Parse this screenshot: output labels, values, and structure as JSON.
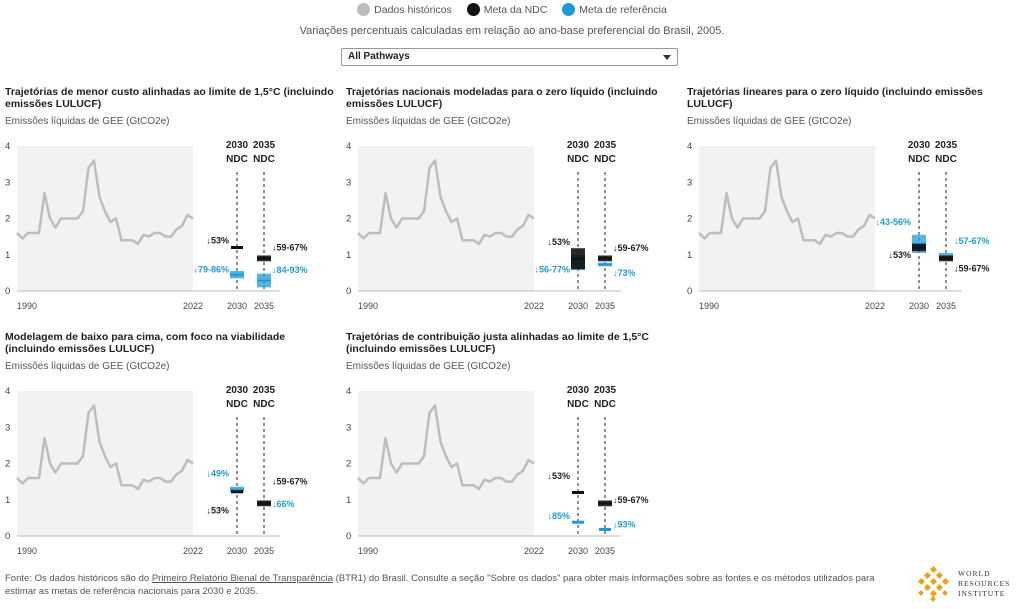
{
  "legend": [
    {
      "label": "Dados históricos",
      "color": "#bdbdbd"
    },
    {
      "label": "Meta da NDC",
      "color": "#111111"
    },
    {
      "label": "Meta de referência",
      "color": "#1e9bd7"
    }
  ],
  "subtitle": "Variações percentuais calculadas em relação ao ano-base preferencial do Brasil, 2005.",
  "dropdown": {
    "selected": "All Pathways"
  },
  "shared": {
    "ylabel": "Emissões líquidas de GEE (GtCO2e)",
    "ylim": [
      0,
      4
    ],
    "yticks": [
      "0",
      "1",
      "2",
      "3",
      "4"
    ],
    "x_labels": [
      "1990",
      "2022",
      "2030",
      "2035"
    ],
    "ndc_headers": [
      [
        "2030",
        "NDC"
      ],
      [
        "2035",
        "NDC"
      ]
    ],
    "history_x": [
      1990,
      1991,
      1992,
      1993,
      1994,
      1995,
      1996,
      1997,
      1998,
      1999,
      2000,
      2001,
      2002,
      2003,
      2004,
      2005,
      2006,
      2007,
      2008,
      2009,
      2010,
      2011,
      2012,
      2013,
      2014,
      2015,
      2016,
      2017,
      2018,
      2019,
      2020,
      2021,
      2022
    ],
    "history_y": [
      1.6,
      1.45,
      1.6,
      1.6,
      1.6,
      2.7,
      2.0,
      1.75,
      2.0,
      2.0,
      2.0,
      2.0,
      2.2,
      3.4,
      3.6,
      2.6,
      2.2,
      1.9,
      2.0,
      1.4,
      1.4,
      1.4,
      1.3,
      1.55,
      1.5,
      1.6,
      1.6,
      1.5,
      1.5,
      1.7,
      1.8,
      2.1,
      2.0
    ]
  },
  "chart_data": [
    {
      "type": "line",
      "title": "Trajetórias de menor custo alinhadas ao limite de 1,5°C (incluindo emissões LULUCF)",
      "ndc": {
        "2030": 1.2,
        "2035": [
          0.82,
          0.98
        ]
      },
      "ref": {
        "2030": [
          0.35,
          0.55
        ],
        "2035": [
          0.1,
          0.48
        ]
      },
      "labels": [
        {
          "text": "↓53%",
          "kind": "ndc",
          "x": 2030,
          "y": 1.4,
          "side": "left"
        },
        {
          "text": "↓59-67%",
          "kind": "ndc",
          "x": 2035,
          "y": 1.2,
          "side": "right"
        },
        {
          "text": "↓79-86%",
          "kind": "ref",
          "x": 2030,
          "y": 0.6,
          "side": "left"
        },
        {
          "text": "↓84-93%",
          "kind": "ref",
          "x": 2035,
          "y": 0.58,
          "side": "right"
        }
      ]
    },
    {
      "type": "line",
      "title": "Trajetórias nacionais modeladas para o zero líquido (incluindo emissões LULUCF)",
      "ndc": {
        "2030": [
          0.6,
          1.18
        ],
        "2035": [
          0.82,
          0.98
        ]
      },
      "ref": {
        "2030": [
          0.58,
          1.0
        ],
        "2035": [
          0.68,
          0.78
        ]
      },
      "labels": [
        {
          "text": "↓53%",
          "kind": "ndc",
          "x": 2030,
          "y": 1.35,
          "side": "left"
        },
        {
          "text": "↓59-67%",
          "kind": "ndc",
          "x": 2035,
          "y": 1.18,
          "side": "right"
        },
        {
          "text": "↓56-77%",
          "kind": "ref",
          "x": 2030,
          "y": 0.6,
          "side": "left"
        },
        {
          "text": "↓73%",
          "kind": "ref",
          "x": 2035,
          "y": 0.5,
          "side": "right"
        }
      ]
    },
    {
      "type": "line",
      "title": "Trajetórias lineares para o zero líquido (incluindo emissões LULUCF)",
      "ndc": {
        "2030": [
          1.1,
          1.3
        ],
        "2035": [
          0.82,
          0.98
        ]
      },
      "ref": {
        "2030": [
          1.05,
          1.55
        ],
        "2035": [
          0.85,
          1.05
        ]
      },
      "labels": [
        {
          "text": "↓43-56%",
          "kind": "ref",
          "x": 2030,
          "y": 1.9,
          "side": "left"
        },
        {
          "text": "↓53%",
          "kind": "ndc",
          "x": 2030,
          "y": 1.0,
          "side": "left"
        },
        {
          "text": "↓57-67%",
          "kind": "ref",
          "x": 2035,
          "y": 1.38,
          "side": "right"
        },
        {
          "text": "↓59-67%",
          "kind": "ndc",
          "x": 2035,
          "y": 0.62,
          "side": "right"
        }
      ]
    },
    {
      "type": "line",
      "title": "Modelagem de baixo para cima, com foco na viabilidade (incluindo emissões LULUCF)",
      "ndc": {
        "2030": 1.22,
        "2035": [
          0.82,
          0.98
        ]
      },
      "ref": {
        "2030": [
          1.2,
          1.36
        ],
        "2035": [
          0.85,
          0.95
        ]
      },
      "labels": [
        {
          "text": "↓49%",
          "kind": "ref",
          "x": 2030,
          "y": 1.72,
          "side": "left"
        },
        {
          "text": "↓53%",
          "kind": "ndc",
          "x": 2030,
          "y": 0.7,
          "side": "left"
        },
        {
          "text": "↓59-67%",
          "kind": "ndc",
          "x": 2035,
          "y": 1.5,
          "side": "right"
        },
        {
          "text": "↓66%",
          "kind": "ref",
          "x": 2035,
          "y": 0.88,
          "side": "right"
        }
      ]
    },
    {
      "type": "line",
      "title": "Trajetórias de contribuição justa alinhadas ao limite de 1,5°C (incluindo emissões LULUCF)",
      "ndc": {
        "2030": 1.2,
        "2035": [
          0.82,
          0.98
        ]
      },
      "ref": {
        "2030": 0.38,
        "2035": 0.18
      },
      "labels": [
        {
          "text": "↓53%",
          "kind": "ndc",
          "x": 2030,
          "y": 1.65,
          "side": "left"
        },
        {
          "text": "↓59-67%",
          "kind": "ndc",
          "x": 2035,
          "y": 1.0,
          "side": "right"
        },
        {
          "text": "↓85%",
          "kind": "ref",
          "x": 2030,
          "y": 0.55,
          "side": "left"
        },
        {
          "text": "↓93%",
          "kind": "ref",
          "x": 2035,
          "y": 0.32,
          "side": "right"
        }
      ]
    }
  ],
  "footer": {
    "prefix": "Fonte: Os dados históricos são do ",
    "link": "Primeiro Relatório Bienal de Transparência",
    "suffix": " (BTR1) do Brasil. Consulte a seção \"Sobre os dados\" para obter mais informações sobre as fontes e os métodos utilizados para estimar as metas de referência nacionais para 2030 e 2035."
  },
  "logo": {
    "line1": "WORLD",
    "line2": "RESOURCES",
    "line3": "INSTITUTE"
  }
}
